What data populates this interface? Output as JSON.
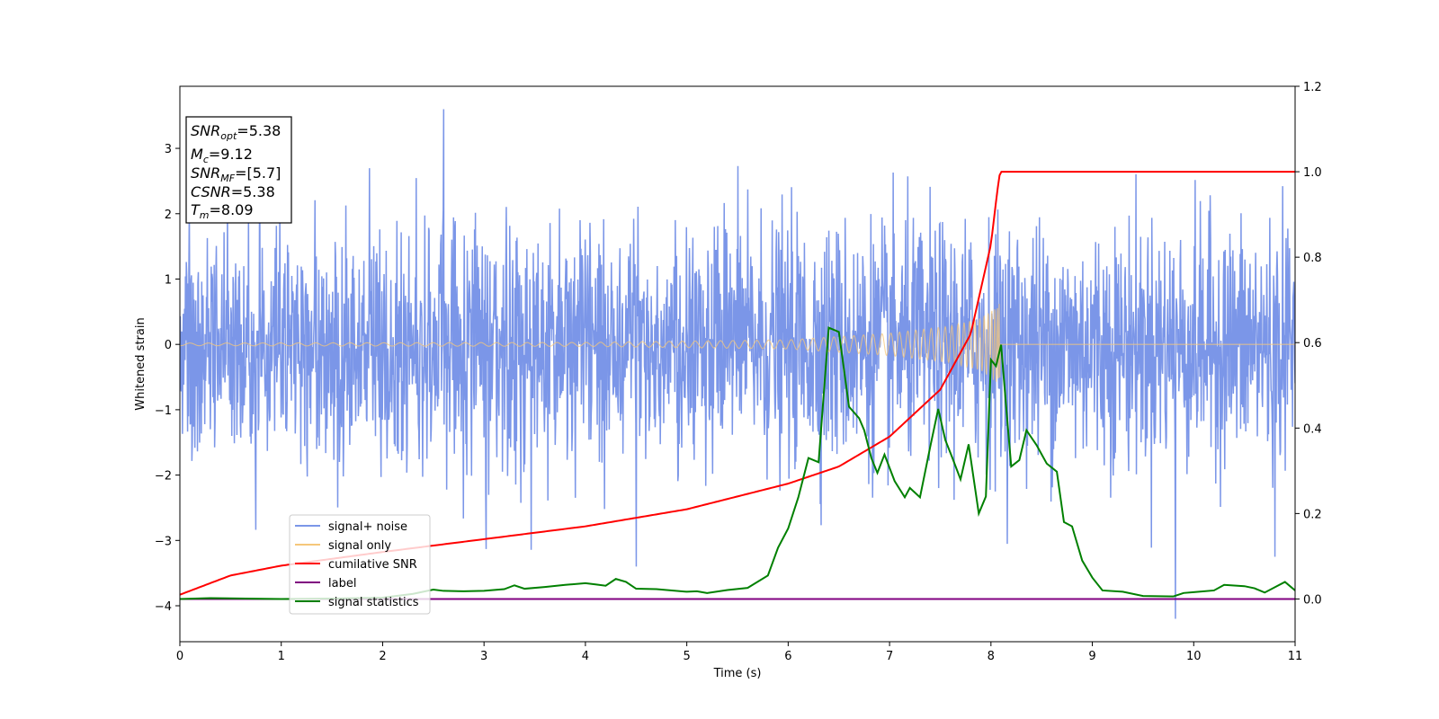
{
  "chart_data": {
    "type": "line",
    "title": "",
    "xlabel": "Time (s)",
    "ylabel": "Whitened strain",
    "xlim": [
      0,
      11
    ],
    "ylim": [
      -4.55,
      3.95
    ],
    "y2lim": [
      -0.1,
      1.2
    ],
    "xticks": [
      0,
      1,
      2,
      3,
      4,
      5,
      6,
      7,
      8,
      9,
      10,
      11
    ],
    "yticks": [
      -4,
      -3,
      -2,
      -1,
      0,
      1,
      2,
      3
    ],
    "y2ticks": [
      0.0,
      0.2,
      0.4,
      0.6,
      0.8,
      1.0,
      1.2
    ],
    "xtick_labels": [
      "0",
      "1",
      "2",
      "3",
      "4",
      "5",
      "6",
      "7",
      "8",
      "9",
      "10",
      "11"
    ],
    "ytick_labels": [
      "−4",
      "−3",
      "−2",
      "−1",
      "0",
      "1",
      "2",
      "3"
    ],
    "y2tick_labels": [
      "0.0",
      "0.2",
      "0.4",
      "0.6",
      "0.8",
      "1.0",
      "1.2"
    ],
    "legend_position": "lower-left",
    "series": [
      {
        "name": "signal+ noise",
        "axis": "left",
        "color": "#7b96e8",
        "description": "white noise, approx std 0.9, range about -4.2 to 3.6",
        "notable_points": [
          [
            2.6,
            3.6
          ],
          [
            9.82,
            -4.2
          ],
          [
            10.8,
            -3.25
          ],
          [
            4.5,
            -3.4
          ]
        ]
      },
      {
        "name": "signal only",
        "axis": "left",
        "color": "#f5c77a",
        "description": "chirp with growing amplitude, merger at t=8.09",
        "envelope": [
          [
            0,
            0.02
          ],
          [
            4,
            0.03
          ],
          [
            6,
            0.07
          ],
          [
            7,
            0.17
          ],
          [
            7.6,
            0.28
          ],
          [
            7.9,
            0.4
          ],
          [
            8.05,
            0.58
          ],
          [
            8.09,
            0.65
          ],
          [
            8.1,
            0.0
          ],
          [
            11,
            0.0
          ]
        ]
      },
      {
        "name": "cumilative SNR",
        "axis": "right",
        "color": "#ff0000",
        "x": [
          0,
          0.5,
          1,
          2,
          3,
          4,
          5,
          6,
          6.5,
          7,
          7.5,
          7.8,
          8.0,
          8.06,
          8.09,
          11
        ],
        "values": [
          0.01,
          0.055,
          0.078,
          0.11,
          0.14,
          0.17,
          0.21,
          0.27,
          0.31,
          0.38,
          0.49,
          0.62,
          0.83,
          0.95,
          1.0,
          1.0
        ]
      },
      {
        "name": "label",
        "axis": "right",
        "color": "#800080",
        "x": [
          0,
          11
        ],
        "values": [
          0.0,
          0.0
        ]
      },
      {
        "name": "signal statistics",
        "axis": "right",
        "color": "#008000",
        "x": [
          0,
          0.3,
          1.0,
          1.5,
          2.0,
          2.3,
          2.5,
          2.6,
          2.8,
          3.0,
          3.2,
          3.3,
          3.4,
          3.6,
          3.8,
          4.0,
          4.1,
          4.2,
          4.3,
          4.4,
          4.5,
          4.7,
          5.0,
          5.1,
          5.2,
          5.4,
          5.6,
          5.8,
          5.9,
          6.0,
          6.1,
          6.2,
          6.3,
          6.4,
          6.5,
          6.6,
          6.7,
          6.75,
          6.82,
          6.88,
          6.95,
          7.05,
          7.15,
          7.2,
          7.3,
          7.4,
          7.48,
          7.55,
          7.62,
          7.7,
          7.78,
          7.88,
          7.95,
          8.0,
          8.05,
          8.1,
          8.15,
          8.2,
          8.28,
          8.35,
          8.45,
          8.55,
          8.65,
          8.72,
          8.8,
          8.9,
          9.0,
          9.1,
          9.3,
          9.5,
          9.8,
          9.9,
          10.0,
          10.2,
          10.3,
          10.5,
          10.6,
          10.7,
          10.9,
          11.0
        ],
        "values": [
          0.0,
          0.002,
          0.0,
          0.001,
          0.003,
          0.012,
          0.022,
          0.019,
          0.018,
          0.019,
          0.023,
          0.032,
          0.024,
          0.028,
          0.033,
          0.037,
          0.034,
          0.031,
          0.047,
          0.04,
          0.024,
          0.023,
          0.017,
          0.018,
          0.014,
          0.021,
          0.026,
          0.055,
          0.12,
          0.165,
          0.238,
          0.33,
          0.32,
          0.635,
          0.625,
          0.45,
          0.423,
          0.395,
          0.33,
          0.295,
          0.338,
          0.276,
          0.238,
          0.26,
          0.238,
          0.355,
          0.445,
          0.372,
          0.33,
          0.28,
          0.362,
          0.2,
          0.24,
          0.56,
          0.545,
          0.595,
          0.45,
          0.31,
          0.325,
          0.395,
          0.36,
          0.317,
          0.298,
          0.18,
          0.17,
          0.09,
          0.05,
          0.02,
          0.017,
          0.007,
          0.006,
          0.014,
          0.016,
          0.02,
          0.033,
          0.03,
          0.025,
          0.015,
          0.04,
          0.02
        ]
      }
    ],
    "annotation": {
      "snr_opt_label": "SNR",
      "snr_opt_sub": "opt",
      "snr_opt_value": "=5.38",
      "mc_label": "M",
      "mc_sub": "c",
      "mc_value": "=9.12",
      "snr_mf_label": "SNR",
      "snr_mf_sub": "MF",
      "snr_mf_value": "=[5.7]",
      "csnr_label": "CSNR",
      "csnr_value": "=5.38",
      "tm_label": "T",
      "tm_sub": "m",
      "tm_value": "=8.09"
    }
  }
}
